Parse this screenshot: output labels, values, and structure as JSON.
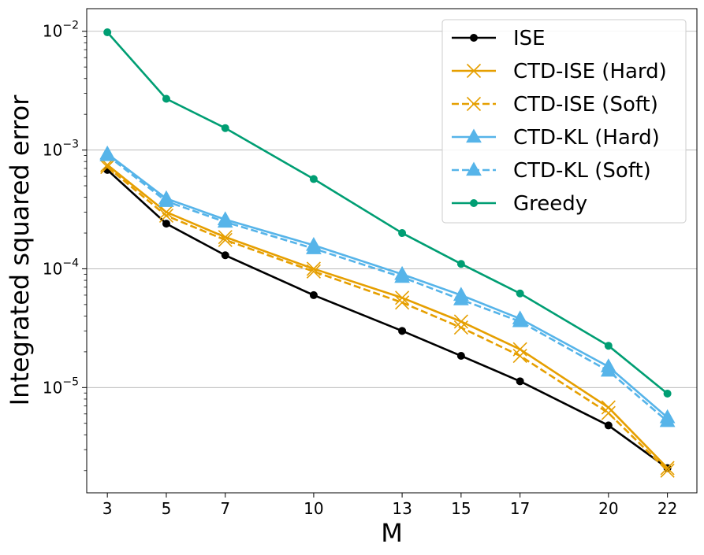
{
  "chart_data": {
    "type": "line",
    "title": "",
    "xlabel": "M",
    "ylabel": "Integrated squared error",
    "x": [
      3,
      5,
      7,
      10,
      13,
      15,
      17,
      20,
      22
    ],
    "x_tick_labels": [
      "3",
      "5",
      "7",
      "10",
      "13",
      "15",
      "17",
      "20",
      "22"
    ],
    "xlim": [
      2.3,
      23.0
    ],
    "yscale": "log",
    "ylim": [
      1.3e-06,
      0.0155
    ],
    "y_ticks": [
      {
        "value": 1e-05,
        "base": "10",
        "exp": "−5"
      },
      {
        "value": 0.0001,
        "base": "10",
        "exp": "−4"
      },
      {
        "value": 0.001,
        "base": "10",
        "exp": "−3"
      },
      {
        "value": 0.01,
        "base": "10",
        "exp": "−2"
      }
    ],
    "grid": "horizontal major",
    "legend_position": "top-right",
    "series": [
      {
        "name": "ISE",
        "color": "#000000",
        "linestyle": "solid",
        "marker": "circle",
        "values": [
          0.00068,
          0.00024,
          0.00013,
          6e-05,
          3e-05,
          1.85e-05,
          1.13e-05,
          4.8e-06,
          2.1e-06
        ]
      },
      {
        "name": "CTD-ISE (Hard)",
        "color": "#E69F00",
        "linestyle": "solid",
        "marker": "x",
        "values": [
          0.00075,
          0.0003,
          0.000185,
          0.0001,
          5.7e-05,
          3.6e-05,
          2.1e-05,
          6.8e-06,
          2.1e-06
        ]
      },
      {
        "name": "CTD-ISE (Soft)",
        "color": "#E69F00",
        "linestyle": "dashed",
        "marker": "x",
        "values": [
          0.00072,
          0.00028,
          0.000175,
          9.5e-05,
          5.2e-05,
          3.2e-05,
          1.85e-05,
          6.1e-06,
          2e-06
        ]
      },
      {
        "name": "CTD-KL (Hard)",
        "color": "#56B4E9",
        "linestyle": "solid",
        "marker": "triangle",
        "values": [
          0.00093,
          0.00039,
          0.00026,
          0.000158,
          9e-05,
          6e-05,
          3.8e-05,
          1.5e-05,
          5.6e-06
        ]
      },
      {
        "name": "CTD-KL (Soft)",
        "color": "#56B4E9",
        "linestyle": "dashed",
        "marker": "triangle",
        "values": [
          0.0009,
          0.00037,
          0.000248,
          0.000148,
          8.5e-05,
          5.5e-05,
          3.6e-05,
          1.38e-05,
          5.2e-06
        ]
      },
      {
        "name": "Greedy",
        "color": "#009E73",
        "linestyle": "solid",
        "marker": "circle",
        "values": [
          0.0098,
          0.0027,
          0.00153,
          0.00057,
          0.0002,
          0.00011,
          6.2e-05,
          2.25e-05,
          8.9e-06
        ]
      }
    ]
  }
}
